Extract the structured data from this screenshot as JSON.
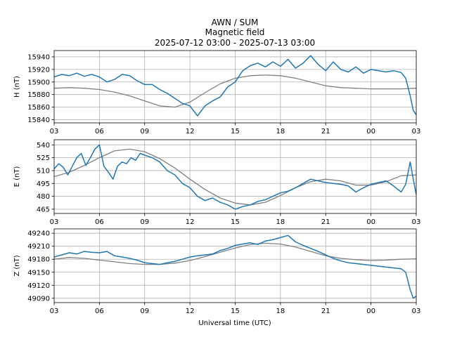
{
  "figure": {
    "title_lines": [
      "AWN / SUM",
      "Magnetic field",
      "2025-07-12 03:00 - 2025-07-13 03:00"
    ],
    "xlabel": "Universal time (UTC)",
    "x_ticks": [
      "03",
      "06",
      "09",
      "12",
      "15",
      "18",
      "21",
      "00",
      "03"
    ],
    "colors": {
      "observed": "#1f77b4",
      "baseline": "#808080",
      "grid": "#b0b0b0"
    }
  },
  "chart_data": [
    {
      "type": "line",
      "ylabel": "H (nT)",
      "ylim": [
        15835,
        15950
      ],
      "y_ticks": [
        15840,
        15860,
        15880,
        15900,
        15920,
        15940
      ],
      "xlim": [
        0,
        24
      ],
      "x_unit": "hours after 2025-07-12 03:00 UTC",
      "grid": true,
      "series": [
        {
          "role": "observed",
          "x": [
            0,
            0.5,
            1,
            1.5,
            2,
            2.5,
            3,
            3.5,
            4,
            4.5,
            5,
            5.5,
            6,
            6.5,
            7,
            7.5,
            8,
            8.5,
            9,
            9.5,
            10,
            10.5,
            11,
            11.5,
            12,
            12.5,
            13,
            13.5,
            14,
            14.5,
            15,
            15.5,
            16,
            16.5,
            17,
            17.5,
            18,
            18.5,
            19,
            19.5,
            20,
            20.5,
            21,
            21.5,
            22,
            22.5,
            23,
            23.3,
            23.6,
            23.8,
            24
          ],
          "values": [
            15908,
            15912,
            15910,
            15914,
            15909,
            15912,
            15908,
            15900,
            15904,
            15912,
            15910,
            15902,
            15896,
            15896,
            15888,
            15882,
            15874,
            15866,
            15862,
            15846,
            15862,
            15870,
            15876,
            15892,
            15900,
            15918,
            15926,
            15930,
            15924,
            15932,
            15925,
            15936,
            15922,
            15930,
            15942,
            15928,
            15918,
            15932,
            15920,
            15916,
            15924,
            15914,
            15920,
            15918,
            15916,
            15918,
            15915,
            15906,
            15878,
            15855,
            15848
          ]
        },
        {
          "role": "baseline",
          "x": [
            0,
            1,
            2,
            3,
            4,
            5,
            6,
            7,
            8,
            9,
            10,
            11,
            12,
            13,
            14,
            15,
            16,
            17,
            18,
            19,
            20,
            21,
            22,
            23,
            24
          ],
          "values": [
            15890,
            15891,
            15890,
            15888,
            15884,
            15878,
            15870,
            15862,
            15860,
            15868,
            15883,
            15897,
            15906,
            15910,
            15911,
            15910,
            15906,
            15900,
            15894,
            15891,
            15890,
            15889,
            15889,
            15889,
            15890
          ]
        }
      ]
    },
    {
      "type": "line",
      "ylabel": "E (nT)",
      "ylim": [
        460,
        546
      ],
      "y_ticks": [
        465,
        480,
        495,
        510,
        525,
        540
      ],
      "xlim": [
        0,
        24
      ],
      "x_unit": "hours after 2025-07-12 03:00 UTC",
      "grid": true,
      "series": [
        {
          "role": "observed",
          "x": [
            0,
            0.3,
            0.6,
            0.9,
            1.2,
            1.5,
            1.8,
            2.1,
            2.4,
            2.7,
            3,
            3.3,
            3.6,
            3.9,
            4.2,
            4.5,
            4.8,
            5.1,
            5.4,
            5.7,
            6,
            6.5,
            7,
            7.5,
            8,
            8.5,
            9,
            9.5,
            10,
            10.5,
            11,
            11.5,
            12,
            12.5,
            13,
            13.5,
            14,
            14.5,
            15,
            15.5,
            16,
            16.5,
            17,
            17.5,
            18,
            18.5,
            19,
            19.5,
            20,
            20.5,
            21,
            21.5,
            22,
            22.5,
            23,
            23.3,
            23.6,
            23.8,
            24
          ],
          "values": [
            512,
            518,
            514,
            505,
            515,
            525,
            530,
            516,
            525,
            535,
            540,
            515,
            508,
            500,
            515,
            520,
            518,
            525,
            522,
            530,
            528,
            525,
            520,
            510,
            505,
            495,
            490,
            480,
            475,
            478,
            473,
            470,
            465,
            468,
            470,
            474,
            476,
            480,
            484,
            486,
            490,
            495,
            500,
            498,
            496,
            495,
            494,
            492,
            485,
            490,
            494,
            496,
            498,
            492,
            485,
            494,
            520,
            500,
            482
          ]
        },
        {
          "role": "baseline",
          "x": [
            0,
            1,
            2,
            3,
            4,
            5,
            6,
            7,
            8,
            9,
            10,
            11,
            12,
            13,
            14,
            15,
            16,
            17,
            18,
            19,
            20,
            21,
            22,
            23,
            24
          ],
          "values": [
            503,
            508,
            516,
            525,
            533,
            535,
            532,
            524,
            513,
            500,
            488,
            478,
            472,
            470,
            473,
            481,
            490,
            497,
            500,
            498,
            493,
            493,
            497,
            504,
            505
          ]
        }
      ]
    },
    {
      "type": "line",
      "ylabel": "Z (nT)",
      "ylim": [
        49080,
        49250
      ],
      "y_ticks": [
        49090,
        49120,
        49150,
        49180,
        49210,
        49240
      ],
      "xlim": [
        0,
        24
      ],
      "x_unit": "hours after 2025-07-12 03:00 UTC",
      "grid": true,
      "series": [
        {
          "role": "observed",
          "x": [
            0,
            0.5,
            1,
            1.5,
            2,
            2.5,
            3,
            3.5,
            4,
            4.5,
            5,
            5.5,
            6,
            6.5,
            7,
            7.5,
            8,
            8.5,
            9,
            9.5,
            10,
            10.5,
            11,
            11.5,
            12,
            12.5,
            13,
            13.5,
            14,
            14.5,
            15,
            15.5,
            16,
            16.5,
            17,
            17.5,
            18,
            18.5,
            19,
            19.5,
            20,
            20.5,
            21,
            21.5,
            22,
            22.5,
            23,
            23.3,
            23.6,
            23.8,
            24
          ],
          "values": [
            49185,
            49190,
            49195,
            49192,
            49198,
            49196,
            49195,
            49198,
            49188,
            49185,
            49182,
            49178,
            49172,
            49170,
            49168,
            49172,
            49175,
            49180,
            49185,
            49188,
            49190,
            49192,
            49200,
            49205,
            49212,
            49215,
            49218,
            49214,
            49222,
            49225,
            49230,
            49235,
            49220,
            49212,
            49205,
            49198,
            49190,
            49182,
            49176,
            49172,
            49170,
            49168,
            49166,
            49164,
            49162,
            49160,
            49158,
            49150,
            49110,
            49090,
            49095
          ]
        },
        {
          "role": "baseline",
          "x": [
            0,
            1,
            2,
            3,
            4,
            5,
            6,
            7,
            8,
            9,
            10,
            11,
            12,
            13,
            14,
            15,
            16,
            17,
            18,
            19,
            20,
            21,
            22,
            23,
            24
          ],
          "values": [
            49180,
            49184,
            49182,
            49178,
            49174,
            49170,
            49168,
            49168,
            49171,
            49177,
            49186,
            49196,
            49206,
            49214,
            49217,
            49215,
            49208,
            49198,
            49188,
            49182,
            49179,
            49177,
            49178,
            49180,
            49181
          ]
        }
      ]
    }
  ]
}
